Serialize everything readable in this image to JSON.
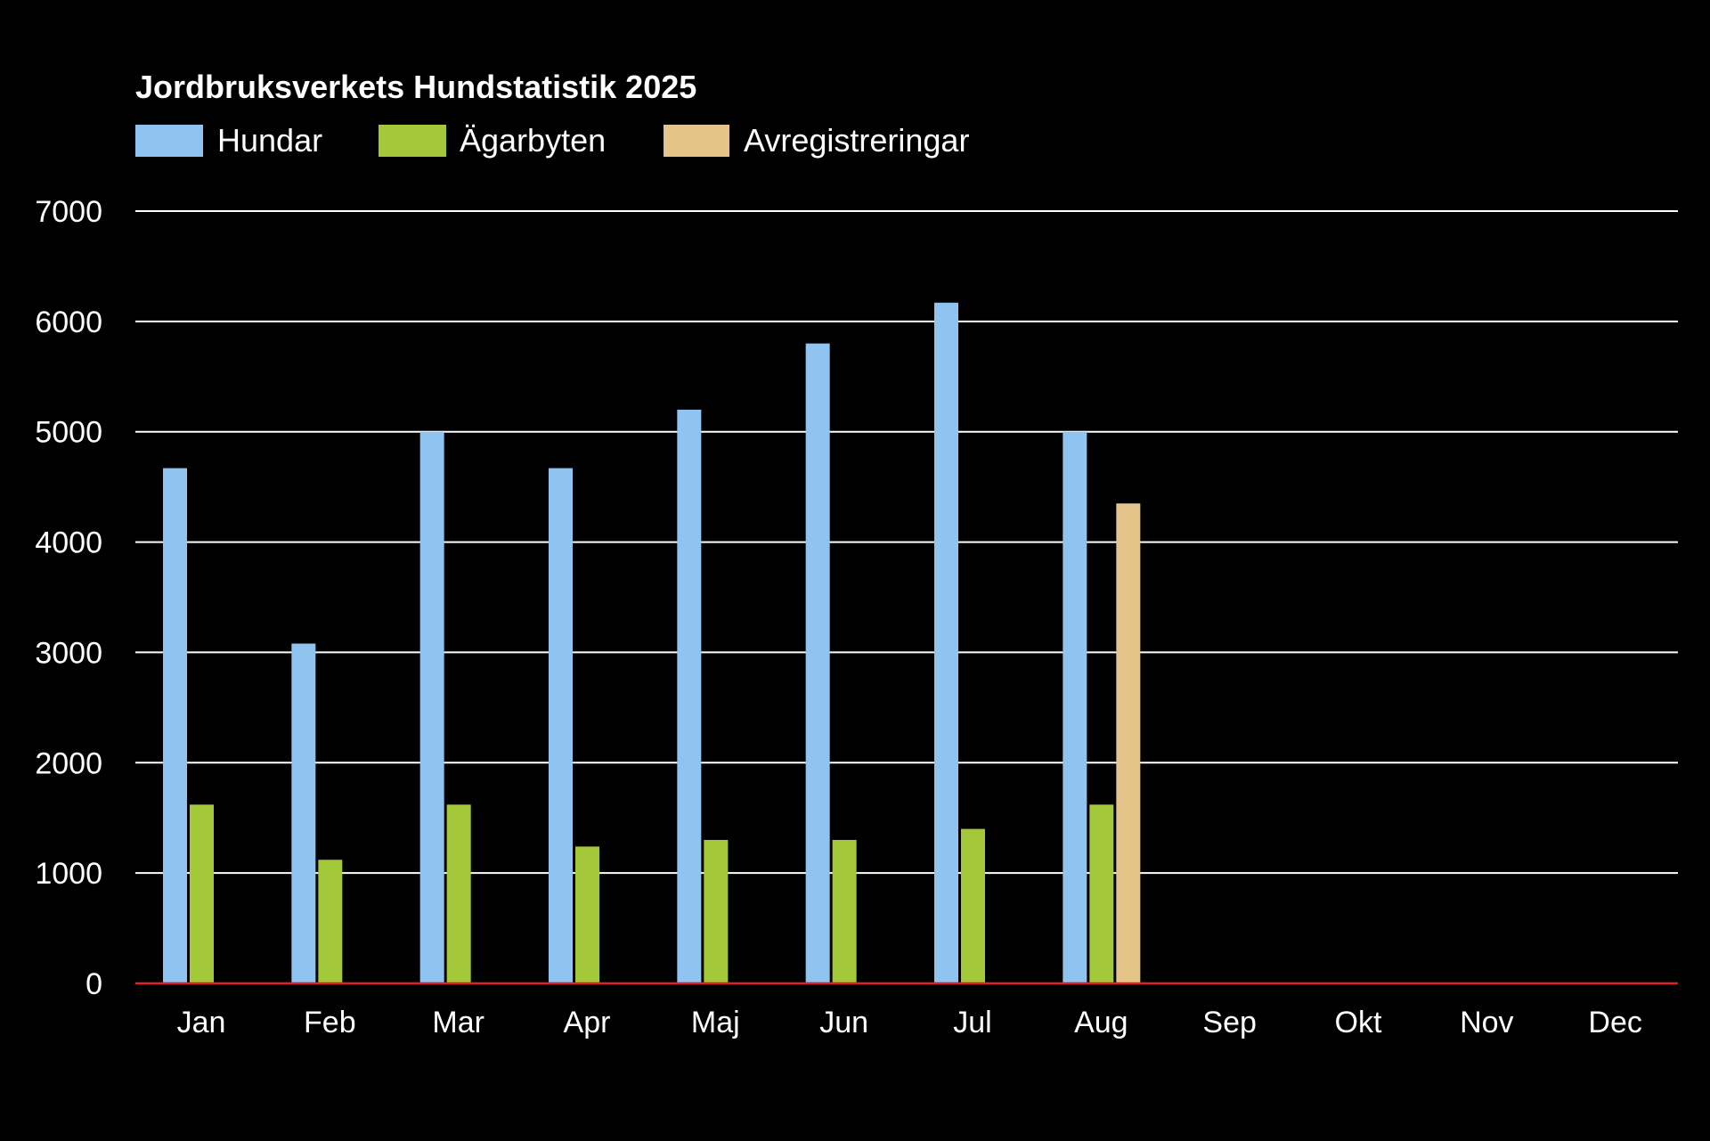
{
  "chart_data": {
    "type": "bar",
    "title": "Jordbruksverkets Hundstatistik 2025",
    "categories": [
      "Jan",
      "Feb",
      "Mar",
      "Apr",
      "Maj",
      "Jun",
      "Jul",
      "Aug",
      "Sep",
      "Okt",
      "Nov",
      "Dec"
    ],
    "series": [
      {
        "name": "Hundar",
        "color": "#8fc4f0",
        "values": [
          4670,
          3080,
          5000,
          4670,
          5200,
          5800,
          6170,
          5000,
          null,
          null,
          null,
          null
        ]
      },
      {
        "name": "Ägarbyten",
        "color": "#a3c93a",
        "values": [
          1620,
          1120,
          1620,
          1240,
          1300,
          1300,
          1400,
          1620,
          null,
          null,
          null,
          null
        ]
      },
      {
        "name": "Avregistreringar",
        "color": "#e5c48a",
        "values": [
          null,
          null,
          null,
          null,
          null,
          null,
          null,
          4350,
          null,
          null,
          null,
          null
        ]
      }
    ],
    "ylim": [
      0,
      7000
    ],
    "yticks": [
      0,
      1000,
      2000,
      3000,
      4000,
      5000,
      6000,
      7000
    ],
    "xlabel": "",
    "ylabel": "",
    "grid": true,
    "legend_position": "top-left",
    "gridline_color": "#ffffff",
    "baseline_color": "#e0201c",
    "background": "#000000"
  }
}
